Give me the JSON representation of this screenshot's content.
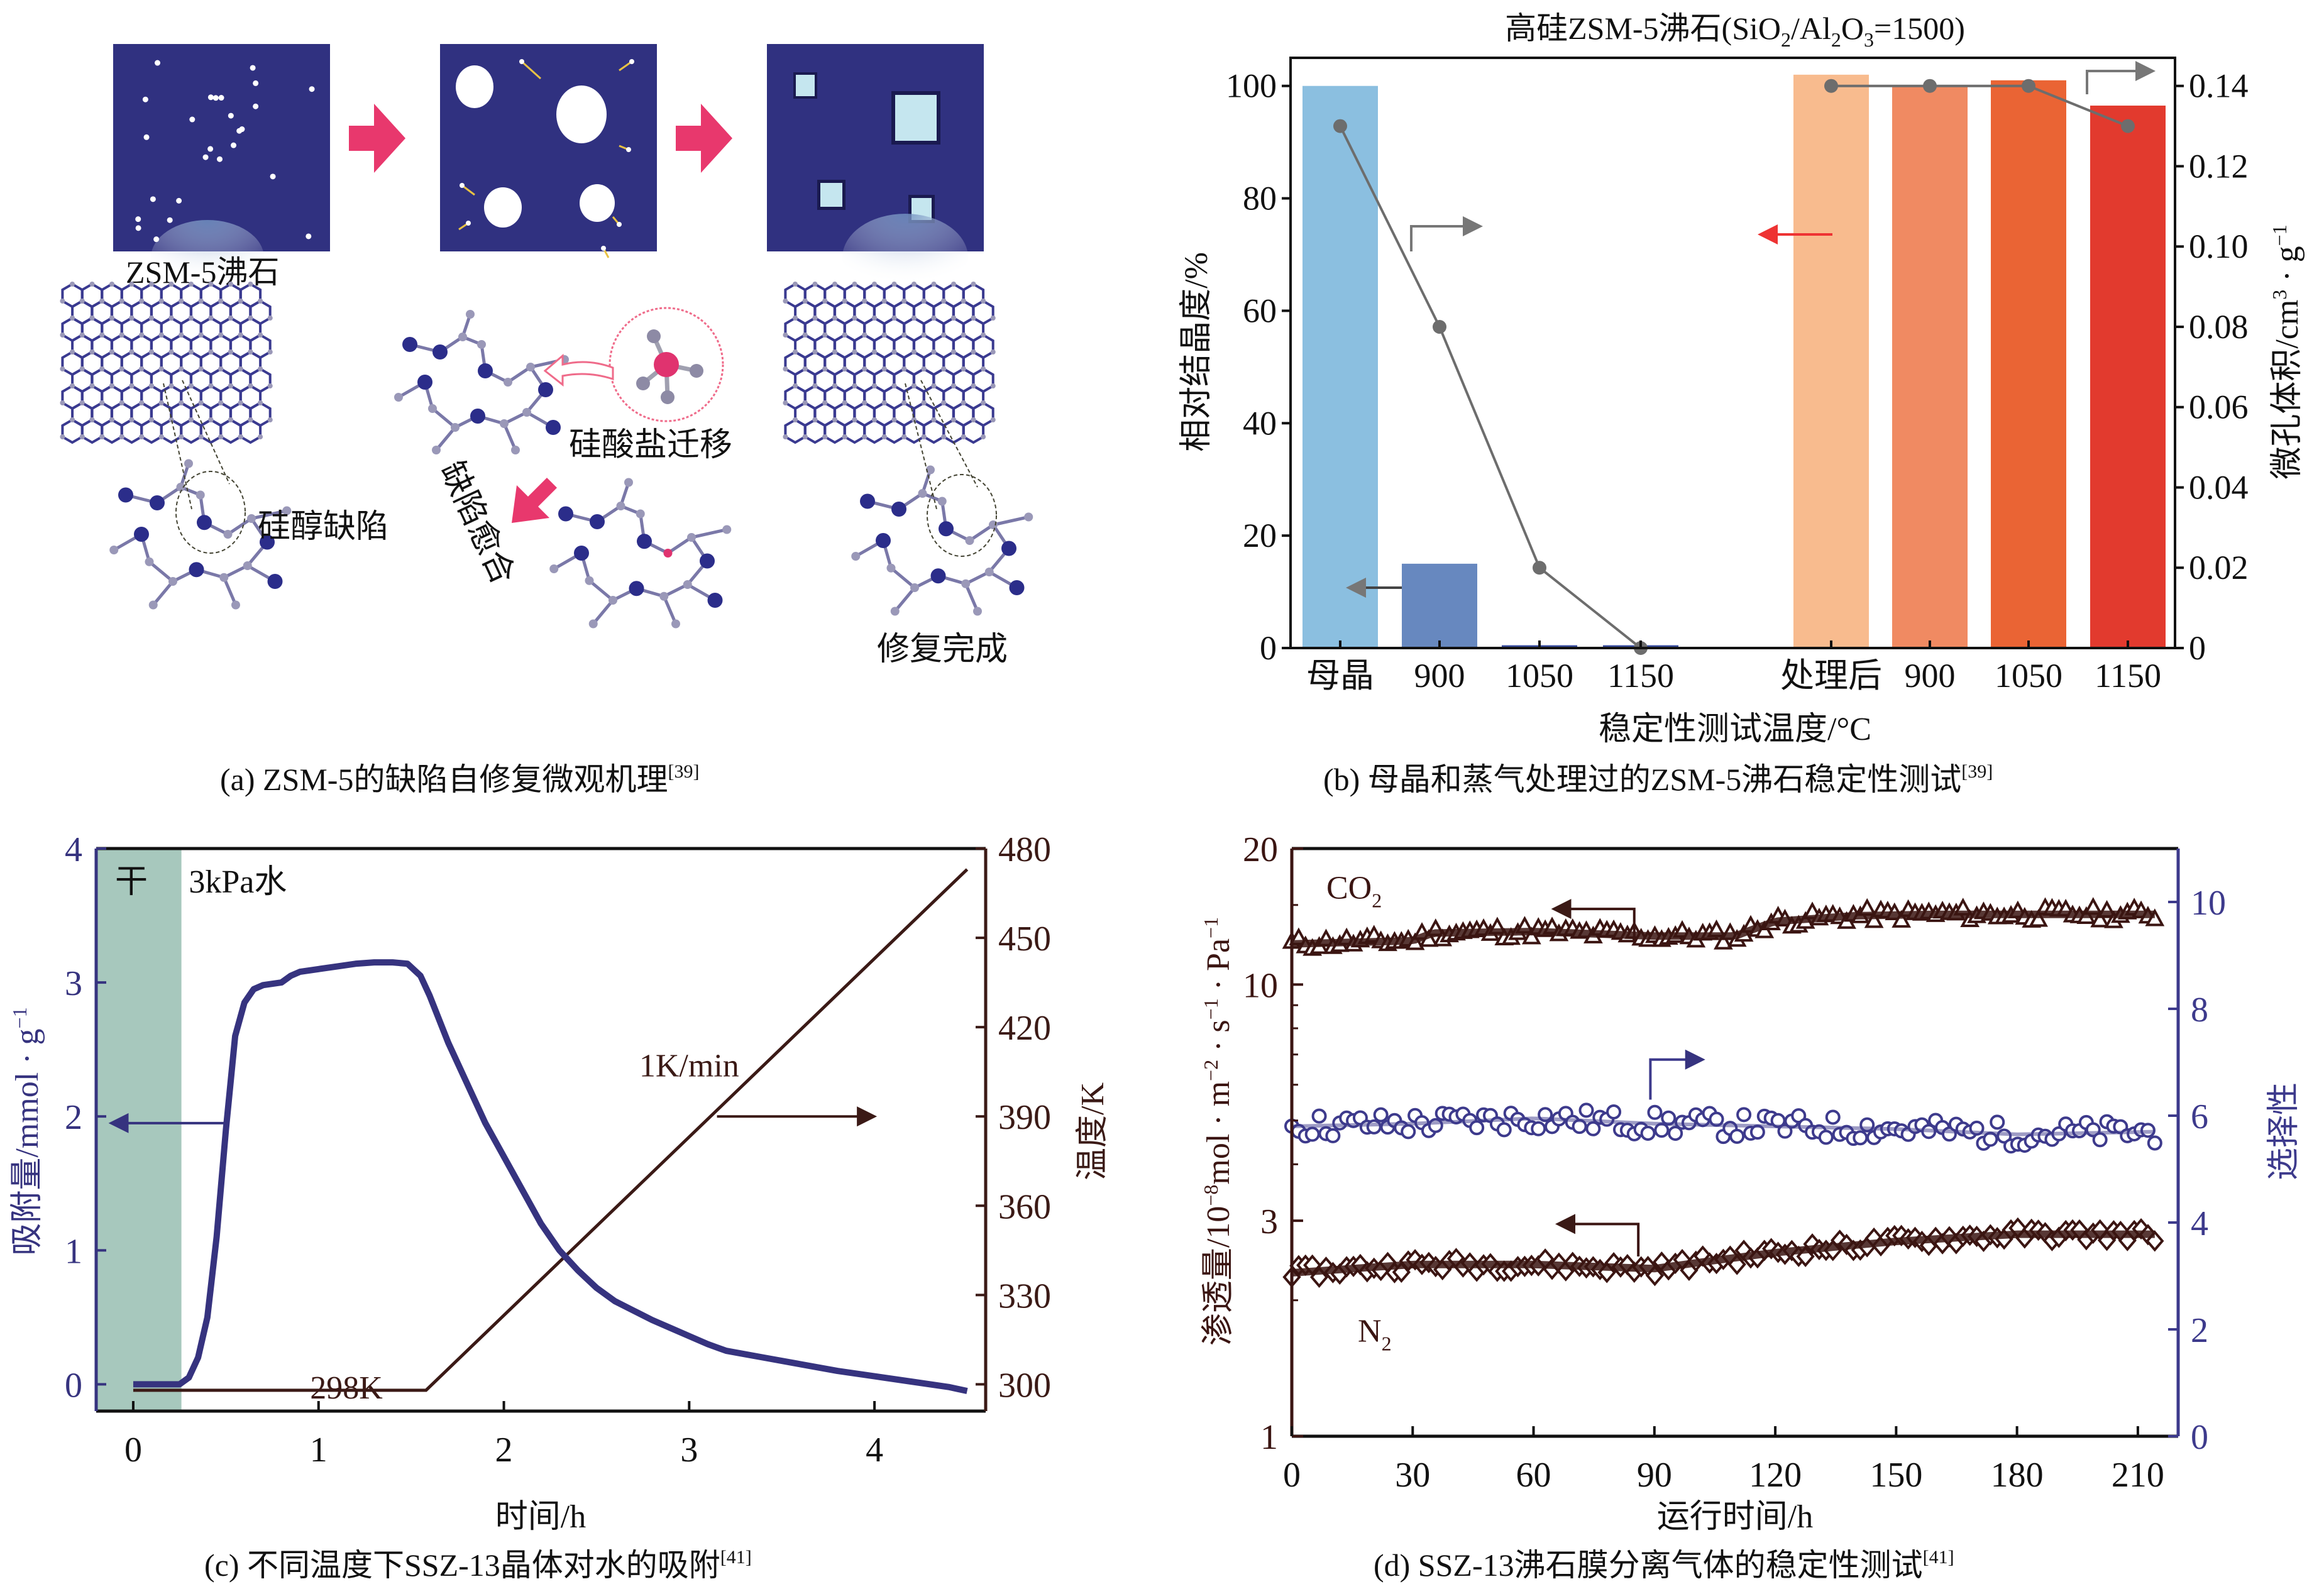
{
  "panel_a": {
    "caption": "(a) ZSM-5的缺陷自修复微观机理",
    "caption_ref": "[39]",
    "labels": {
      "zeolite": "ZSM-5沸石",
      "silanol_defect": "硅醇缺陷",
      "silicate_migration": "硅酸盐迁移",
      "defect_healing": "缺陷愈合",
      "repair_complete": "修复完成"
    },
    "colors": {
      "crystal": "#303180",
      "arrow": "#e8386d",
      "atom_si": "#2b2d8a",
      "atom_o": "#9a98b8",
      "highlight": "#e8386d"
    }
  },
  "chart_data": [
    {
      "id": "b",
      "type": "bar",
      "title": "高硅ZSM-5沸石(SiO2/Al2O3=1500)",
      "title_parts": [
        "高硅ZSM-5沸石(SiO",
        "2",
        "/Al",
        "2",
        "O",
        "3",
        "=1500)"
      ],
      "caption": "(b) 母晶和蒸气处理过的ZSM-5沸石稳定性测试",
      "caption_ref": "[39]",
      "xlabel": "稳定性测试温度/°C",
      "ylabel": "相对结晶度/%",
      "ylabel2": "微孔体积/cm3 · g−1",
      "ylabel2_parts": [
        "微孔体积/cm",
        "3",
        " · g",
        "−1"
      ],
      "categories": [
        "母晶",
        "900",
        "1050",
        "1150",
        "处理后",
        "900",
        "1050",
        "1150"
      ],
      "ylim": [
        0,
        105
      ],
      "yticks": [
        0,
        20,
        40,
        60,
        80,
        100
      ],
      "y2lim": [
        0,
        0.147
      ],
      "y2ticks": [
        "0",
        "0.02",
        "0.04",
        "0.06",
        "0.08",
        "0.10",
        "0.12",
        "0.14"
      ],
      "series": [
        {
          "name": "相对结晶度",
          "axis": "left",
          "kind": "bar",
          "values": [
            100,
            15,
            0.5,
            0.5,
            102,
            100,
            101,
            96.5
          ],
          "colors": [
            "#8bbfe0",
            "#6788bf",
            "#3a4fa0",
            "#3a4fa0",
            "#f8bb8e",
            "#f08a62",
            "#ea6434",
            "#e23a2e"
          ]
        },
        {
          "name": "微孔体积",
          "axis": "right",
          "kind": "line",
          "values": [
            0.13,
            0.08,
            0.02,
            0.0,
            null,
            null,
            null,
            null
          ],
          "color": "#6d6d6d"
        },
        {
          "name": "微孔体积(处理后)",
          "axis": "right",
          "kind": "line",
          "values": [
            null,
            null,
            null,
            null,
            0.14,
            0.14,
            0.14,
            0.13
          ],
          "color": "#6d6d6d"
        }
      ],
      "annotations": [
        "left-arrow (grey) at 母晶 bar",
        "right-arrow (grey) near 900",
        "left-arrow (red) near 处理后",
        "right-arrow (grey) near 1150"
      ]
    },
    {
      "id": "c",
      "type": "line",
      "caption": "(c) 不同温度下SSZ-13晶体对水的吸附",
      "caption_ref": "[41]",
      "xlabel": "时间/h",
      "ylabel": "吸附量/mmol · g−1",
      "ylabel_parts": [
        "吸附量/mmol · g",
        "−1"
      ],
      "ylabel2": "温度/K",
      "xlim": [
        -0.2,
        4.6
      ],
      "xticks": [
        0,
        1,
        2,
        3,
        4
      ],
      "ylim": [
        -0.2,
        4
      ],
      "yticks": [
        0,
        1,
        2,
        3,
        4
      ],
      "y2lim": [
        291,
        480
      ],
      "y2ticks": [
        300,
        330,
        360,
        390,
        420,
        450,
        480
      ],
      "shaded_region": {
        "label": "干",
        "x": [
          -0.2,
          0.26
        ],
        "color": "#a7c8bd"
      },
      "region_label": "3kPa水",
      "annotations": {
        "rate": "1K/min",
        "isotherm": "298K"
      },
      "series": [
        {
          "name": "吸附量",
          "axis": "left",
          "color": "#36337f",
          "x": [
            0,
            0.25,
            0.3,
            0.35,
            0.4,
            0.45,
            0.5,
            0.55,
            0.6,
            0.65,
            0.7,
            0.8,
            0.85,
            0.9,
            1.0,
            1.1,
            1.2,
            1.3,
            1.4,
            1.48,
            1.55,
            1.6,
            1.7,
            1.8,
            1.9,
            2.0,
            2.1,
            2.2,
            2.3,
            2.4,
            2.5,
            2.6,
            2.7,
            2.8,
            2.9,
            3.0,
            3.1,
            3.2,
            3.4,
            3.6,
            3.8,
            4.0,
            4.2,
            4.4,
            4.5
          ],
          "y": [
            0,
            0,
            0.05,
            0.2,
            0.5,
            1.1,
            1.9,
            2.6,
            2.85,
            2.95,
            2.98,
            3.0,
            3.05,
            3.08,
            3.1,
            3.12,
            3.14,
            3.15,
            3.15,
            3.14,
            3.05,
            2.9,
            2.55,
            2.25,
            1.95,
            1.7,
            1.45,
            1.2,
            1.0,
            0.85,
            0.72,
            0.62,
            0.55,
            0.48,
            0.42,
            0.36,
            0.3,
            0.25,
            0.2,
            0.15,
            0.1,
            0.06,
            0.02,
            -0.02,
            -0.05
          ]
        },
        {
          "name": "温度",
          "axis": "right",
          "color": "#3b1a16",
          "x": [
            0,
            1.58,
            4.5
          ],
          "y": [
            298,
            298,
            473
          ]
        }
      ]
    },
    {
      "id": "d",
      "type": "scatter",
      "caption": "(d) SSZ-13沸石膜分离气体的稳定性测试",
      "caption_ref": "[41]",
      "xlabel": "运行时间/h",
      "ylabel": "渗透量/10−8mol · m−2 · s−1 · Pa−1",
      "ylabel_parts": [
        "渗透量/10",
        "−8",
        "mol · m",
        "−2",
        " · s",
        "−1",
        " · Pa",
        "−1"
      ],
      "ylabel2": "选择性",
      "xlim": [
        0,
        220
      ],
      "xticks": [
        0,
        30,
        60,
        90,
        120,
        150,
        180,
        210
      ],
      "yscale": "log",
      "ylim": [
        1,
        20
      ],
      "yticks": [
        1,
        3,
        10,
        20
      ],
      "y2lim": [
        0,
        11
      ],
      "y2ticks": [
        0,
        2,
        4,
        6,
        8,
        10
      ],
      "series": [
        {
          "name": "CO2",
          "label_parts": [
            "CO",
            "2"
          ],
          "axis": "left",
          "marker": "triangle",
          "color": "#3b1512",
          "trend_x": [
            0,
            30,
            35,
            60,
            90,
            110,
            120,
            140,
            160,
            215
          ],
          "trend_y": [
            12.3,
            12.5,
            13.0,
            13.1,
            12.8,
            12.8,
            13.8,
            14.2,
            14.3,
            14.3
          ]
        },
        {
          "name": "选择性",
          "axis": "right",
          "marker": "circle",
          "color": "#3d3a8c",
          "trend_x": [
            0,
            30,
            60,
            90,
            120,
            150,
            180,
            215
          ],
          "trend_y": [
            5.8,
            5.85,
            5.95,
            5.85,
            5.8,
            5.75,
            5.65,
            5.7
          ]
        },
        {
          "name": "N2",
          "label_parts": [
            "N",
            "2"
          ],
          "axis": "left",
          "marker": "diamond",
          "color": "#3b1512",
          "trend_x": [
            0,
            30,
            60,
            90,
            120,
            150,
            180,
            215
          ],
          "trend_y": [
            2.3,
            2.4,
            2.4,
            2.35,
            2.55,
            2.7,
            2.8,
            2.8
          ]
        }
      ]
    }
  ]
}
